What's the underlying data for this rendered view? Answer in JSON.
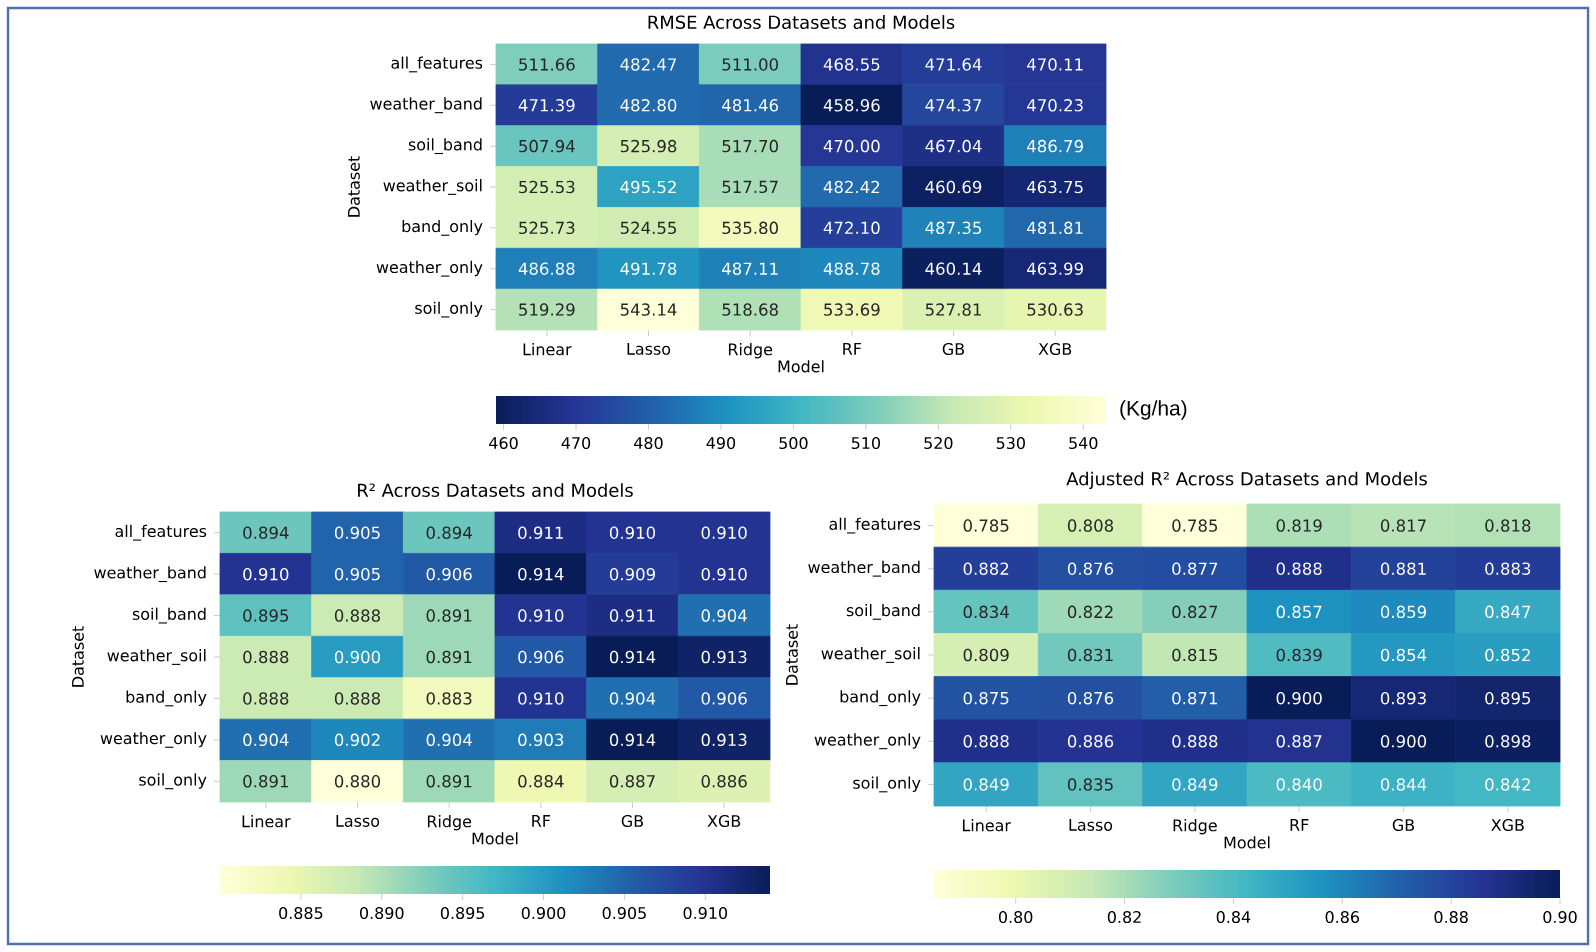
{
  "chart_data": [
    {
      "type": "heatmap",
      "title": "RMSE Across Datasets and Models",
      "xlabel": "Model",
      "ylabel": "Dataset",
      "clabel": "(Kg/ha)",
      "categories": [
        "Linear",
        "Lasso",
        "Ridge",
        "RF",
        "GB",
        "XGB"
      ],
      "y_categories": [
        "all_features",
        "weather_band",
        "soil_band",
        "weather_soil",
        "band_only",
        "weather_only",
        "soil_only"
      ],
      "cells": [
        [
          511.66,
          482.47,
          511.0,
          468.55,
          471.64,
          470.11
        ],
        [
          471.39,
          482.8,
          481.46,
          458.96,
          474.37,
          470.23
        ],
        [
          507.94,
          525.98,
          517.7,
          470.0,
          467.04,
          486.79
        ],
        [
          525.53,
          495.52,
          517.57,
          482.42,
          460.69,
          463.75
        ],
        [
          525.73,
          524.55,
          535.8,
          472.1,
          487.35,
          481.81
        ],
        [
          486.88,
          491.78,
          487.11,
          488.78,
          460.14,
          463.99
        ],
        [
          519.29,
          543.14,
          518.68,
          533.69,
          527.81,
          530.63
        ]
      ],
      "cell_labels": [
        [
          "511.66",
          "482.47",
          "511.00",
          "468.55",
          "471.64",
          "470.11"
        ],
        [
          "471.39",
          "482.80",
          "481.46",
          "458.96",
          "474.37",
          "470.23"
        ],
        [
          "507.94",
          "525.98",
          "517.70",
          "470.00",
          "467.04",
          "486.79"
        ],
        [
          "525.53",
          "495.52",
          "517.57",
          "482.42",
          "460.69",
          "463.75"
        ],
        [
          "525.73",
          "524.55",
          "535.80",
          "472.10",
          "487.35",
          "481.81"
        ],
        [
          "486.88",
          "491.78",
          "487.11",
          "488.78",
          "460.14",
          "463.99"
        ],
        [
          "519.29",
          "543.14",
          "518.68",
          "533.69",
          "527.81",
          "530.63"
        ]
      ],
      "clim": [
        543.14,
        458.96
      ],
      "cticks": [
        460,
        470,
        480,
        490,
        500,
        510,
        520,
        530,
        540
      ]
    },
    {
      "type": "heatmap",
      "title": "R² Across Datasets and Models",
      "xlabel": "Model",
      "ylabel": "Dataset",
      "categories": [
        "Linear",
        "Lasso",
        "Ridge",
        "RF",
        "GB",
        "XGB"
      ],
      "y_categories": [
        "all_features",
        "weather_band",
        "soil_band",
        "weather_soil",
        "band_only",
        "weather_only",
        "soil_only"
      ],
      "cells": [
        [
          0.894,
          0.905,
          0.894,
          0.911,
          0.91,
          0.91
        ],
        [
          0.91,
          0.905,
          0.906,
          0.914,
          0.909,
          0.91
        ],
        [
          0.895,
          0.888,
          0.891,
          0.91,
          0.911,
          0.904
        ],
        [
          0.888,
          0.9,
          0.891,
          0.906,
          0.914,
          0.913
        ],
        [
          0.888,
          0.888,
          0.883,
          0.91,
          0.904,
          0.906
        ],
        [
          0.904,
          0.902,
          0.904,
          0.903,
          0.914,
          0.913
        ],
        [
          0.891,
          0.88,
          0.891,
          0.884,
          0.887,
          0.886
        ]
      ],
      "cell_labels": [
        [
          "0.894",
          "0.905",
          "0.894",
          "0.911",
          "0.910",
          "0.910"
        ],
        [
          "0.910",
          "0.905",
          "0.906",
          "0.914",
          "0.909",
          "0.910"
        ],
        [
          "0.895",
          "0.888",
          "0.891",
          "0.910",
          "0.911",
          "0.904"
        ],
        [
          "0.888",
          "0.900",
          "0.891",
          "0.906",
          "0.914",
          "0.913"
        ],
        [
          "0.888",
          "0.888",
          "0.883",
          "0.910",
          "0.904",
          "0.906"
        ],
        [
          "0.904",
          "0.902",
          "0.904",
          "0.903",
          "0.914",
          "0.913"
        ],
        [
          "0.891",
          "0.880",
          "0.891",
          "0.884",
          "0.887",
          "0.886"
        ]
      ],
      "clim": [
        0.88,
        0.914
      ],
      "cticks": [
        0.885,
        {
          "value": 0.89,
          "label": "0.890"
        },
        0.895,
        {
          "value": 0.9,
          "label": "0.900"
        },
        0.905,
        {
          "value": 0.91,
          "label": "0.910"
        }
      ]
    },
    {
      "type": "heatmap",
      "title": "Adjusted R² Across Datasets and Models",
      "xlabel": "Model",
      "ylabel": "Dataset",
      "categories": [
        "Linear",
        "Lasso",
        "Ridge",
        "RF",
        "GB",
        "XGB"
      ],
      "y_categories": [
        "all_features",
        "weather_band",
        "soil_band",
        "weather_soil",
        "band_only",
        "weather_only",
        "soil_only"
      ],
      "cells": [
        [
          0.785,
          0.808,
          0.785,
          0.819,
          0.817,
          0.818
        ],
        [
          0.882,
          0.876,
          0.877,
          0.888,
          0.881,
          0.883
        ],
        [
          0.834,
          0.822,
          0.827,
          0.857,
          0.859,
          0.847
        ],
        [
          0.809,
          0.831,
          0.815,
          0.839,
          0.854,
          0.852
        ],
        [
          0.875,
          0.876,
          0.871,
          0.9,
          0.893,
          0.895
        ],
        [
          0.888,
          0.886,
          0.888,
          0.887,
          0.9,
          0.898
        ],
        [
          0.849,
          0.835,
          0.849,
          0.84,
          0.844,
          0.842
        ]
      ],
      "cell_labels": [
        [
          "0.785",
          "0.808",
          "0.785",
          "0.819",
          "0.817",
          "0.818"
        ],
        [
          "0.882",
          "0.876",
          "0.877",
          "0.888",
          "0.881",
          "0.883"
        ],
        [
          "0.834",
          "0.822",
          "0.827",
          "0.857",
          "0.859",
          "0.847"
        ],
        [
          "0.809",
          "0.831",
          "0.815",
          "0.839",
          "0.854",
          "0.852"
        ],
        [
          "0.875",
          "0.876",
          "0.871",
          "0.900",
          "0.893",
          "0.895"
        ],
        [
          "0.888",
          "0.886",
          "0.888",
          "0.887",
          "0.900",
          "0.898"
        ],
        [
          "0.849",
          "0.835",
          "0.849",
          "0.840",
          "0.844",
          "0.842"
        ]
      ],
      "clim": [
        0.785,
        0.9
      ],
      "cticks": [
        {
          "value": 0.8,
          "label": "0.80"
        },
        {
          "value": 0.82,
          "label": "0.82"
        },
        {
          "value": 0.84,
          "label": "0.84"
        },
        {
          "value": 0.86,
          "label": "0.86"
        },
        {
          "value": 0.88,
          "label": "0.88"
        },
        {
          "value": 0.9,
          "label": "0.90"
        }
      ]
    }
  ]
}
